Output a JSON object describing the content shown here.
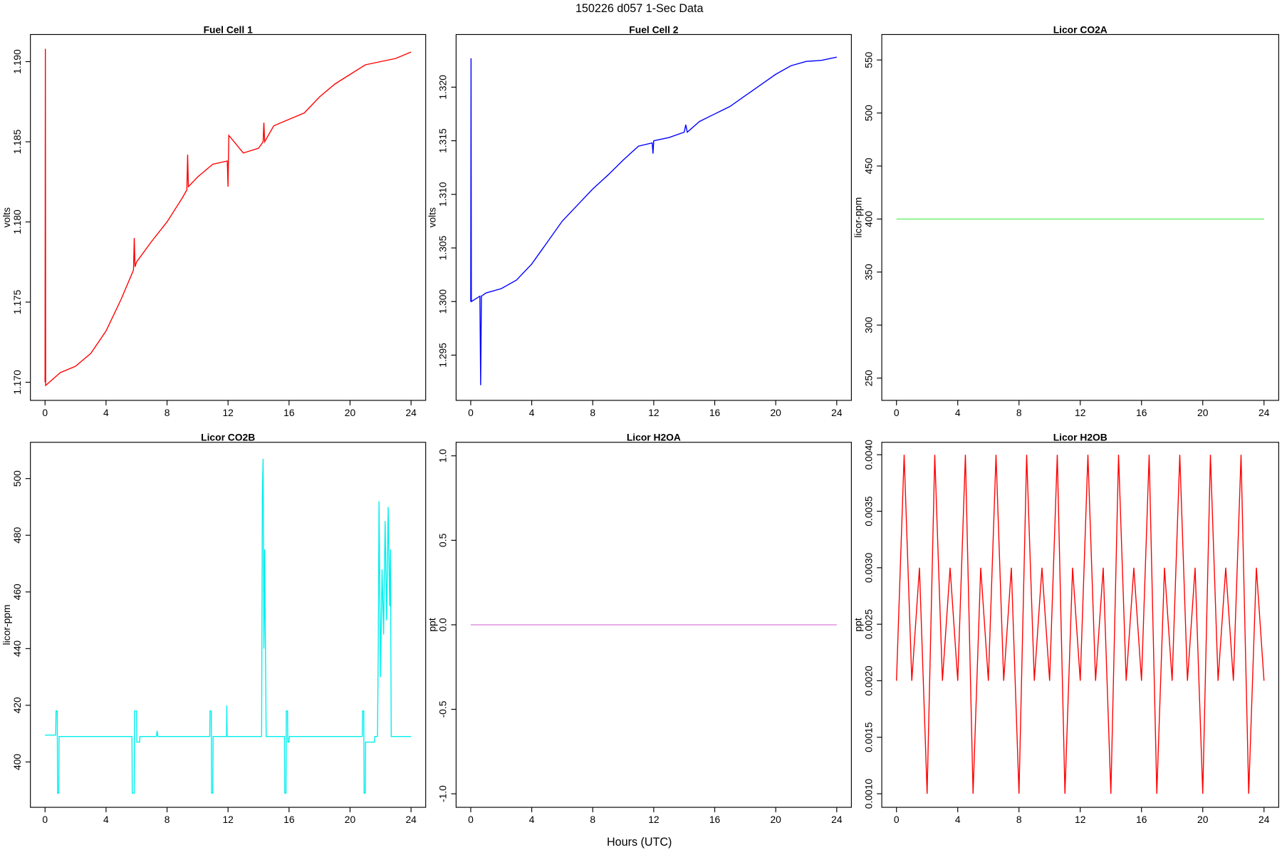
{
  "title": "150226   d057   1-Sec Data",
  "xlabel": "Hours (UTC)",
  "chart_data": [
    {
      "type": "line",
      "title": "Fuel Cell 1",
      "ylabel": "volts",
      "color": "#ff0000",
      "x": [
        0,
        0.02,
        0.04,
        1,
        2,
        3,
        4,
        5,
        5.8,
        5.85,
        5.9,
        6,
        7,
        8,
        9,
        9.3,
        9.35,
        9.4,
        10,
        11,
        11.95,
        12,
        12.05,
        13,
        14,
        14.3,
        14.35,
        14.4,
        15,
        16,
        17,
        18,
        19,
        20,
        21,
        22,
        23,
        24
      ],
      "values": [
        1.17,
        1.1908,
        1.1698,
        1.1706,
        1.171,
        1.1718,
        1.1732,
        1.1752,
        1.177,
        1.179,
        1.1772,
        1.1775,
        1.1788,
        1.18,
        1.1815,
        1.182,
        1.1842,
        1.1822,
        1.1828,
        1.1836,
        1.1838,
        1.1822,
        1.1854,
        1.1843,
        1.1846,
        1.185,
        1.1862,
        1.185,
        1.186,
        1.1864,
        1.1868,
        1.1878,
        1.1886,
        1.1892,
        1.1898,
        1.19,
        1.1902,
        1.1906
      ],
      "xlim": [
        -0.96,
        24.96
      ],
      "ylim": [
        1.16887,
        1.19169
      ],
      "xticks": [
        0,
        4,
        8,
        12,
        16,
        20,
        24
      ],
      "yticks": [
        {
          "value": 1.17,
          "label": "1.170"
        },
        1.175,
        {
          "value": 1.18,
          "label": "1.180"
        },
        1.185,
        {
          "value": 1.19,
          "label": "1.190"
        }
      ]
    },
    {
      "type": "line",
      "title": "Fuel Cell 2",
      "ylabel": "volts",
      "color": "#0000ff",
      "x": [
        0,
        0.02,
        0.04,
        0.6,
        0.65,
        0.7,
        1,
        2,
        3,
        4,
        5,
        6,
        7,
        8,
        9,
        10,
        11,
        11.9,
        11.95,
        12,
        13,
        14,
        14.1,
        14.2,
        15,
        16,
        17,
        18,
        19,
        20,
        21,
        22,
        23,
        24
      ],
      "values": [
        1.3,
        1.3227,
        1.3,
        1.3005,
        1.2922,
        1.3005,
        1.3008,
        1.3012,
        1.302,
        1.3035,
        1.3055,
        1.3075,
        1.309,
        1.3105,
        1.3118,
        1.3132,
        1.3145,
        1.3148,
        1.3138,
        1.315,
        1.3153,
        1.3158,
        1.3165,
        1.3158,
        1.3168,
        1.3175,
        1.3182,
        1.3192,
        1.3202,
        1.3212,
        1.322,
        1.3224,
        1.3225,
        1.3228
      ],
      "xlim": [
        -0.96,
        24.96
      ],
      "ylim": [
        1.29078,
        1.32491
      ],
      "xticks": [
        0,
        4,
        8,
        12,
        16,
        20,
        24
      ],
      "yticks": [
        1.295,
        {
          "value": 1.3,
          "label": "1.300"
        },
        1.305,
        {
          "value": 1.31,
          "label": "1.310"
        },
        1.315,
        {
          "value": 1.32,
          "label": "1.320"
        }
      ]
    },
    {
      "type": "line",
      "title": "Licor CO2A",
      "ylabel": "licor-ppm",
      "color": "#66ee66",
      "x": [
        0,
        24
      ],
      "values": [
        400,
        400
      ],
      "xlim": [
        -0.96,
        24.96
      ],
      "ylim": [
        229,
        574
      ],
      "xticks": [
        0,
        4,
        8,
        12,
        16,
        20,
        24
      ],
      "yticks": [
        250,
        300,
        350,
        400,
        450,
        500,
        550
      ]
    },
    {
      "type": "line",
      "title": "Licor CO2B",
      "ylabel": "licor-ppm",
      "color": "#00eeee",
      "x": [
        0,
        0.7,
        0.72,
        0.8,
        0.82,
        0.9,
        0.92,
        5.7,
        5.72,
        5.85,
        5.87,
        6.0,
        6.02,
        6.2,
        6.22,
        7.3,
        7.35,
        7.4,
        10.8,
        10.82,
        10.9,
        10.92,
        11.0,
        11.02,
        11.9,
        11.92,
        11.94,
        14.2,
        14.25,
        14.3,
        14.35,
        14.4,
        14.5,
        15.7,
        15.72,
        15.8,
        15.82,
        15.9,
        15.92,
        16.0,
        16.02,
        20.8,
        20.82,
        20.9,
        20.92,
        21.0,
        21.02,
        21.6,
        21.62,
        21.8,
        21.85,
        21.9,
        22.0,
        22.1,
        22.2,
        22.3,
        22.4,
        22.5,
        22.6,
        22.65,
        22.7,
        24
      ],
      "values": [
        409.5,
        409.5,
        418,
        418,
        389,
        389,
        409,
        409,
        389,
        389,
        418,
        418,
        407,
        407,
        409,
        409,
        411,
        409,
        409,
        418,
        418,
        389,
        389,
        409,
        409,
        420,
        409,
        409,
        495,
        507,
        440,
        475,
        409,
        409,
        389,
        389,
        418,
        418,
        407,
        407,
        409,
        409,
        418,
        418,
        389,
        389,
        407,
        407,
        409,
        409,
        440,
        492,
        430,
        468,
        445,
        485,
        450,
        490,
        455,
        475,
        409,
        409
      ],
      "xlim": [
        -0.96,
        24.96
      ],
      "ylim": [
        384,
        512.8
      ],
      "xticks": [
        0,
        4,
        8,
        12,
        16,
        20,
        24
      ],
      "yticks": [
        400,
        420,
        440,
        460,
        480,
        500
      ]
    },
    {
      "type": "line",
      "title": "Licor H2OA",
      "ylabel": "ppt",
      "color": "#dd88dd",
      "x": [
        0,
        24
      ],
      "values": [
        0,
        0
      ],
      "xlim": [
        -0.96,
        24.96
      ],
      "ylim": [
        -1.08,
        1.08
      ],
      "xticks": [
        0,
        4,
        8,
        12,
        16,
        20,
        24
      ],
      "yticks": [
        {
          "value": -1,
          "label": "-1.0"
        },
        -0.5,
        {
          "value": 0,
          "label": "0.0"
        },
        0.5,
        {
          "value": 1,
          "label": "1.0"
        }
      ]
    },
    {
      "type": "line",
      "title": "Licor H2OB",
      "ylabel": "ppt",
      "color": "#ff0000",
      "x": [
        0,
        0.5,
        1,
        1.5,
        2,
        2.5,
        3,
        3.5,
        4,
        4.5,
        5,
        5.5,
        6,
        6.5,
        7,
        7.5,
        8,
        8.5,
        9,
        9.5,
        10,
        10.5,
        11,
        11.5,
        12,
        12.5,
        13,
        13.5,
        14,
        14.5,
        15,
        15.5,
        16,
        16.5,
        17,
        17.5,
        18,
        18.5,
        19,
        19.5,
        20,
        20.5,
        21,
        21.5,
        22,
        22.5,
        23,
        23.5,
        24
      ],
      "values": [
        0.002,
        0.004,
        0.002,
        0.003,
        0.001,
        0.004,
        0.002,
        0.003,
        0.002,
        0.004,
        0.001,
        0.003,
        0.002,
        0.004,
        0.002,
        0.003,
        0.001,
        0.004,
        0.002,
        0.003,
        0.002,
        0.004,
        0.001,
        0.003,
        0.002,
        0.004,
        0.002,
        0.003,
        0.001,
        0.004,
        0.002,
        0.003,
        0.002,
        0.004,
        0.001,
        0.003,
        0.002,
        0.004,
        0.002,
        0.003,
        0.001,
        0.004,
        0.002,
        0.003,
        0.002,
        0.004,
        0.001,
        0.003,
        0.002
      ],
      "xlim": [
        -0.96,
        24.96
      ],
      "ylim": [
        0.00088,
        0.00411
      ],
      "xticks": [
        0,
        4,
        8,
        12,
        16,
        20,
        24
      ],
      "yticks": [
        {
          "value": 0.001,
          "label": "0.0010"
        },
        0.0015,
        {
          "value": 0.002,
          "label": "0.0020"
        },
        0.0025,
        {
          "value": 0.003,
          "label": "0.0030"
        },
        0.0035,
        {
          "value": 0.004,
          "label": "0.0040"
        }
      ]
    }
  ]
}
